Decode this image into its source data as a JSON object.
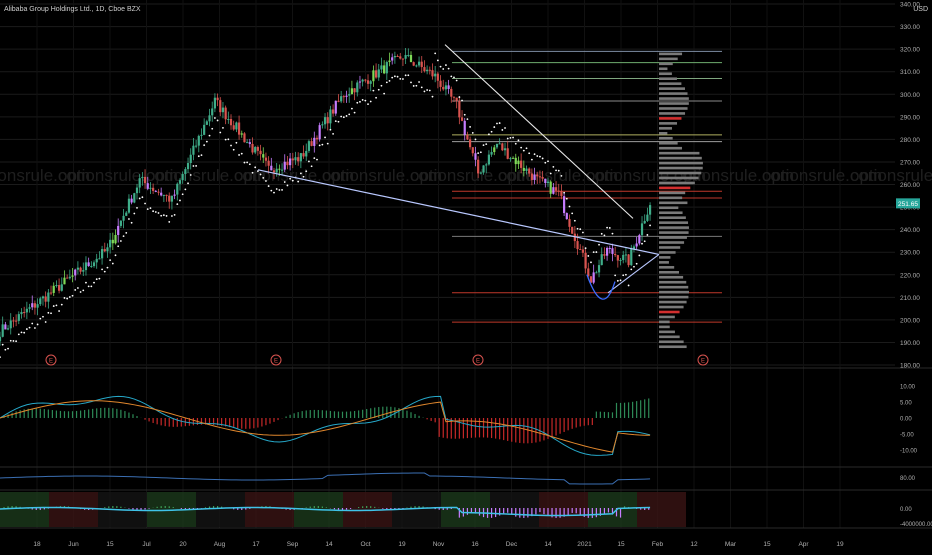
{
  "header": {
    "title": "Alibaba Group Holdings Ltd., 1D, Cboe BZX",
    "currency": "USD"
  },
  "watermark": "optionsrule.com",
  "colors": {
    "bg": "#000000",
    "up": "#3fae8a",
    "down": "#d9534f",
    "purple": "#c77dff",
    "lime": "#7ed957",
    "trend_line": "#b9c8ff",
    "grid": "#1b1b1b",
    "axis_text": "#b0b0b0",
    "macd_line": "#26a8c9",
    "signal_line": "#e0872d",
    "rsi_line": "#3b6fb3",
    "price_tag": "#26a69a"
  },
  "chart_data": [
    {
      "type": "candlestick",
      "title": "Alibaba Group Holdings Ltd., 1D, Cboe BZX",
      "y_unit": "USD",
      "ylim": [
        180,
        340
      ],
      "y_ticks": [
        180,
        190,
        200,
        210,
        220,
        230,
        240,
        250,
        260,
        270,
        280,
        290,
        300,
        310,
        320,
        330,
        340
      ],
      "x_ticks": [
        "18",
        "Jun",
        "15",
        "Jul",
        "20",
        "Aug",
        "17",
        "Sep",
        "14",
        "Oct",
        "19",
        "Nov",
        "16",
        "Dec",
        "14",
        "2021",
        "15",
        "Feb",
        "12",
        "Mar",
        "15",
        "Apr",
        "19"
      ],
      "last_price": "251.65",
      "earnings_markers": [
        "E",
        "E",
        "E",
        "E"
      ],
      "horizontal_levels": [
        {
          "price": 319,
          "color": "#7f8fa6"
        },
        {
          "price": 314,
          "color": "#6fae6f"
        },
        {
          "price": 307,
          "color": "#7fa67f"
        },
        {
          "price": 297,
          "color": "#8a8a8a"
        },
        {
          "price": 282,
          "color": "#b0b060"
        },
        {
          "price": 279,
          "color": "#9e9e9e"
        },
        {
          "price": 257,
          "color": "#c0392b"
        },
        {
          "price": 254,
          "color": "#c0392b"
        },
        {
          "price": 237,
          "color": "#7a7a7a"
        },
        {
          "price": 212,
          "color": "#c0392b"
        },
        {
          "price": 199,
          "color": "#c0392b"
        }
      ],
      "trend_lines": [
        {
          "from": [
            "May 15",
            267
          ],
          "to": [
            "Jan 15",
            229
          ]
        },
        {
          "from": [
            "Oct 26",
            321
          ],
          "to": [
            "Jan 8",
            248
          ]
        },
        {
          "from": [
            "Jan 5",
            213
          ],
          "to": [
            "Jan 15",
            229
          ]
        }
      ],
      "candles_summary": {
        "start_date": "May 15",
        "end_date": "Jan 15",
        "key_closes": [
          195,
          213,
          231,
          262,
          253,
          297,
          267,
          272,
          300,
          317,
          308,
          295,
          265,
          278,
          262,
          256,
          218,
          231,
          226,
          252
        ]
      }
    },
    {
      "type": "macd",
      "ylim": [
        -15,
        15
      ],
      "y_ticks": [
        "10.00",
        "5.00",
        "0.00",
        "-5.00",
        "-10.00"
      ]
    },
    {
      "type": "line",
      "label": "RSI",
      "y_ticks": [
        "80.00"
      ]
    },
    {
      "type": "histogram",
      "y_ticks": [
        "0.00",
        "-4000000.00"
      ]
    }
  ]
}
